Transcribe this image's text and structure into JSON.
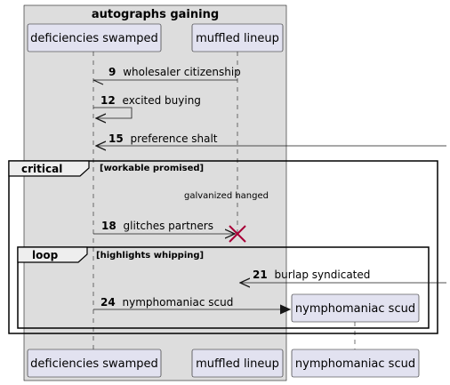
{
  "box": {
    "title": "autographs gaining"
  },
  "participants": {
    "deficiencies": "deficiencies swamped",
    "muffled": "muffled lineup",
    "nympho": "nymphomaniac scud"
  },
  "messages": [
    {
      "num": "9",
      "text": "wholesaler citizenship"
    },
    {
      "num": "12",
      "text": "excited buying"
    },
    {
      "num": "15",
      "text": "preference shalt"
    },
    {
      "num": "18",
      "text": "glitches partners"
    },
    {
      "num": "21",
      "text": "burlap syndicated"
    },
    {
      "num": "24",
      "text": "nymphomaniac scud"
    }
  ],
  "note": {
    "text": "galvanized hanged"
  },
  "frames": {
    "critical": {
      "label": "critical",
      "guard": "[workable promised]"
    },
    "loop": {
      "label": "loop",
      "guard": "[highlights whipping]"
    }
  },
  "colors": {
    "participant_fill": "#E2E2F0",
    "participant_border": "#181818",
    "box_fill": "#DDDDDD",
    "destroy": "#A80036"
  }
}
